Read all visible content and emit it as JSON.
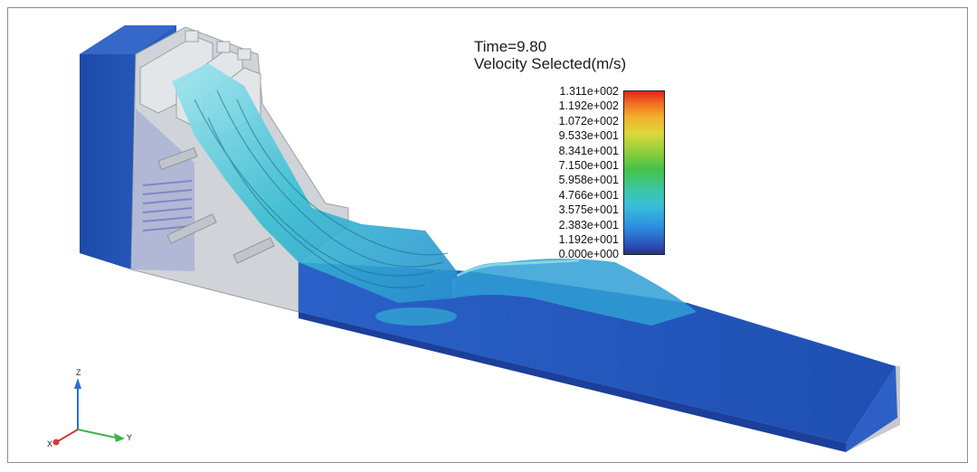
{
  "header": {
    "time_label": "Time=9.80",
    "variable_label": "Velocity Selected(m/s)"
  },
  "legend": {
    "ticks": [
      "1.311e+002",
      "1.192e+002",
      "1.072e+002",
      "9.533e+001",
      "8.341e+001",
      "7.150e+001",
      "5.958e+001",
      "4.766e+001",
      "3.575e+001",
      "2.383e+001",
      "1.192e+001",
      "0.000e+000"
    ],
    "colormap": [
      "#2a2f8e",
      "#2e93e0",
      "#38c0d8",
      "#45c24a",
      "#dcd83a",
      "#f06a20",
      "#e0231e"
    ]
  },
  "axes": {
    "z": "Z",
    "y": "Y",
    "x": "X"
  },
  "colors": {
    "water_deep": "#1f4fb0",
    "water_flow": "#3cc6d4",
    "concrete": "#cfd3d6",
    "frame": "#8c8c8c"
  }
}
